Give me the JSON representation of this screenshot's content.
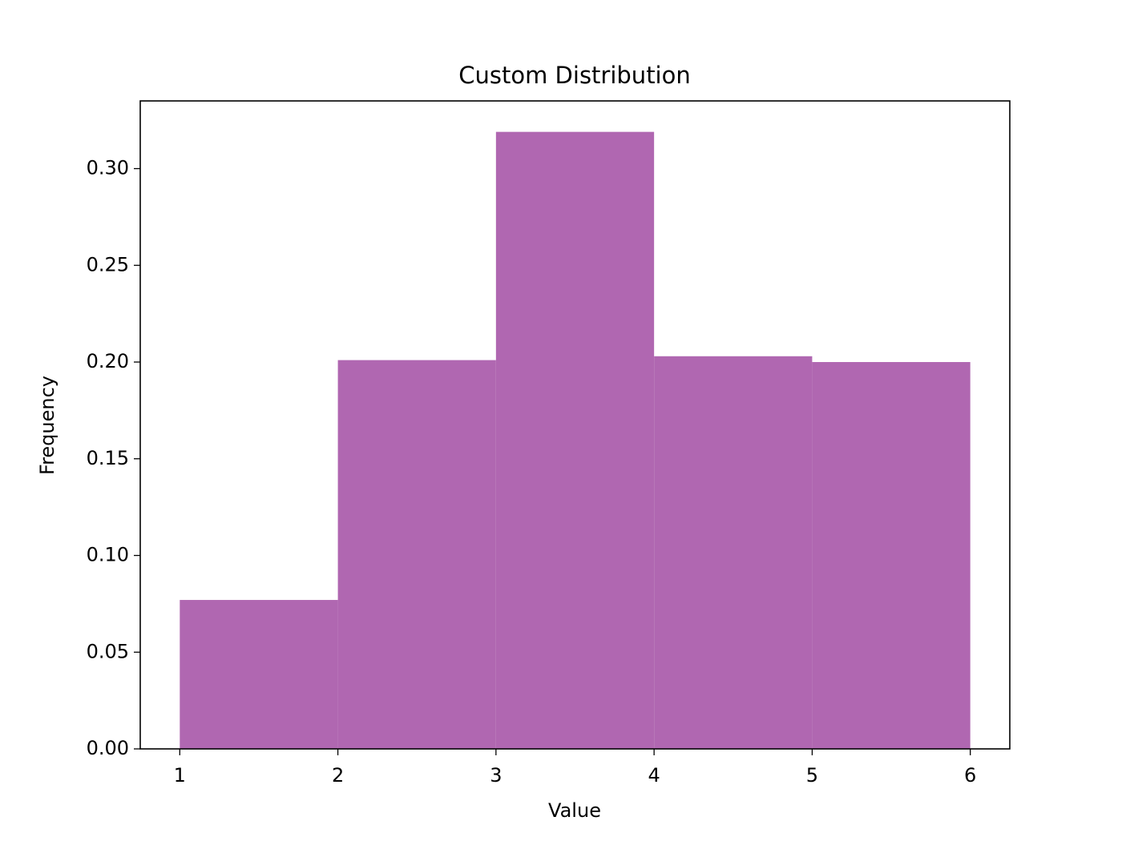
{
  "chart_data": {
    "type": "histogram",
    "title": "Custom Distribution",
    "x_label": "Value",
    "y_label": "Frequency",
    "bins": [
      1,
      2,
      3,
      4,
      5,
      6
    ],
    "counts": [
      0.077,
      0.201,
      0.319,
      0.203,
      0.2
    ],
    "color": "#b067b1",
    "xlim": [
      0.75,
      6.25
    ],
    "ylim": [
      0,
      0.335
    ],
    "xticks": [
      1,
      2,
      3,
      4,
      5,
      6
    ],
    "yticks": [
      {
        "value": 0,
        "label": "0.00"
      },
      {
        "value": 0.05,
        "label": "0.05"
      },
      {
        "value": 0.1,
        "label": "0.10"
      },
      {
        "value": 0.15,
        "label": "0.15"
      },
      {
        "value": 0.2,
        "label": "0.20"
      },
      {
        "value": 0.25,
        "label": "0.25"
      },
      {
        "value": 0.3,
        "label": "0.30"
      }
    ],
    "grid": false
  }
}
